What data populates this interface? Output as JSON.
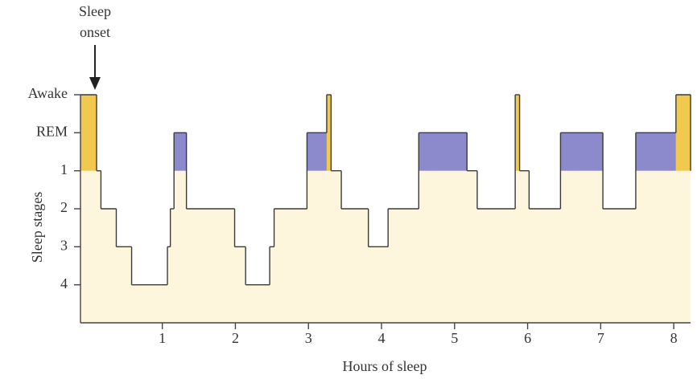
{
  "chart_data": {
    "type": "step",
    "annotation": [
      "Sleep",
      "onset"
    ],
    "xlabel": "Hours of sleep",
    "ylabel": "Sleep stages",
    "x": [
      -0.12,
      0.1,
      0.16,
      0.37,
      0.58,
      1.07,
      1.11,
      1.16,
      1.33,
      1.99,
      2.14,
      2.47,
      2.53,
      2.98,
      3.25,
      3.31,
      3.45,
      3.82,
      4.09,
      4.51,
      5.17,
      5.31,
      5.83,
      5.89,
      6.02,
      6.45,
      7.03,
      7.48,
      8.03
    ],
    "values": [
      0,
      2,
      3,
      4,
      5,
      4,
      3,
      1,
      3,
      4,
      5,
      4,
      3,
      1,
      0,
      2,
      3,
      4,
      3,
      1,
      2,
      3,
      0,
      2,
      3,
      1,
      3,
      1,
      0
    ],
    "xlim": [
      -0.12,
      8.23
    ],
    "ylim": [
      6,
      0
    ],
    "xticks": [
      1,
      2,
      3,
      4,
      5,
      6,
      7,
      8
    ],
    "yticks": [
      {
        "value": 0,
        "label": "Awake"
      },
      {
        "value": 1,
        "label": "REM"
      },
      {
        "value": 2,
        "label": "1"
      },
      {
        "value": 3,
        "label": "2"
      },
      {
        "value": 4,
        "label": "3"
      },
      {
        "value": 5,
        "label": "4"
      }
    ],
    "colors": {
      "awake": "#f1c94e",
      "rem": "#8c89cc",
      "fill": "#fdf6dd",
      "line": "#3a3a3a"
    }
  }
}
